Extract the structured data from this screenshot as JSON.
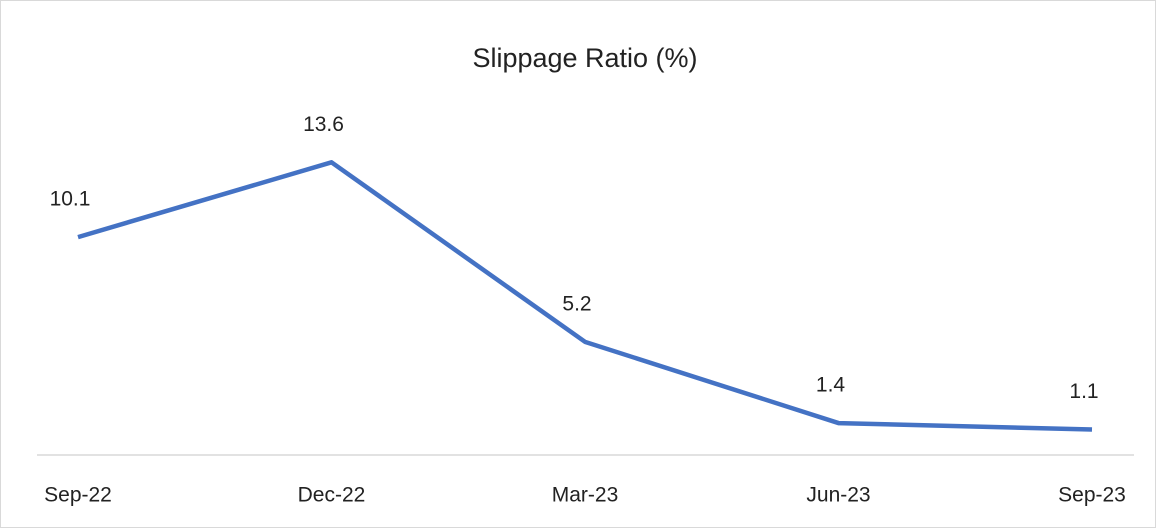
{
  "chart_data": {
    "type": "line",
    "title": "Slippage Ratio (%)",
    "categories": [
      "Sep-22",
      "Dec-22",
      "Mar-23",
      "Jun-23",
      "Sep-23"
    ],
    "series": [
      {
        "name": "Slippage Ratio (%)",
        "color": "#4472c4",
        "values": [
          10.1,
          13.6,
          5.2,
          1.4,
          1.1
        ]
      }
    ],
    "ylim": [
      0,
      16
    ],
    "data_labels": true
  }
}
